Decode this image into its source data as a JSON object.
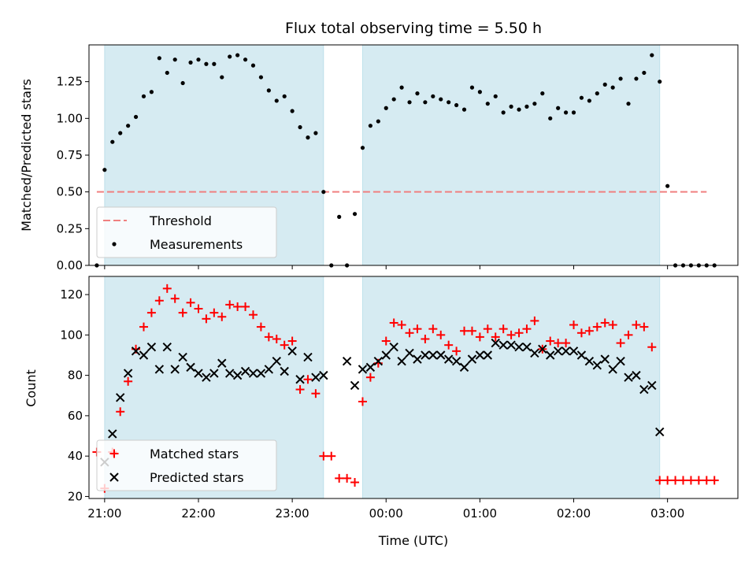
{
  "chart_data": [
    {
      "type": "scatter",
      "title": "Flux total observing time = 5.50 h",
      "xlabel": "",
      "ylabel": "Matched/Predicted stars",
      "xlim": [
        "20:50",
        "03:45"
      ],
      "ylim": [
        0,
        1.5
      ],
      "yticks": [
        "0.00",
        "0.25",
        "0.50",
        "0.75",
        "1.00",
        "1.25"
      ],
      "xticks": [
        "21:00",
        "22:00",
        "23:00",
        "00:00",
        "01:00",
        "02:00",
        "03:00"
      ],
      "observing_windows": [
        [
          "21:00",
          "23:20"
        ],
        [
          "23:45",
          "02:55"
        ]
      ],
      "threshold": {
        "name": "Threshold",
        "value": 0.5,
        "x_range": [
          "20:55",
          "03:25"
        ],
        "color": "#f08080"
      },
      "legend": {
        "placement": "lower-left"
      },
      "series": [
        {
          "name": "Measurements",
          "color": "#000000",
          "points": [
            [
              "20:55",
              0.0
            ],
            [
              "21:00",
              0.65
            ],
            [
              "21:05",
              0.84
            ],
            [
              "21:10",
              0.9
            ],
            [
              "21:15",
              0.95
            ],
            [
              "21:20",
              1.01
            ],
            [
              "21:25",
              1.15
            ],
            [
              "21:30",
              1.18
            ],
            [
              "21:35",
              1.41
            ],
            [
              "21:40",
              1.31
            ],
            [
              "21:45",
              1.4
            ],
            [
              "21:50",
              1.24
            ],
            [
              "21:55",
              1.38
            ],
            [
              "22:00",
              1.4
            ],
            [
              "22:05",
              1.37
            ],
            [
              "22:10",
              1.37
            ],
            [
              "22:15",
              1.28
            ],
            [
              "22:20",
              1.42
            ],
            [
              "22:25",
              1.43
            ],
            [
              "22:30",
              1.4
            ],
            [
              "22:35",
              1.36
            ],
            [
              "22:40",
              1.28
            ],
            [
              "22:45",
              1.19
            ],
            [
              "22:50",
              1.12
            ],
            [
              "22:55",
              1.15
            ],
            [
              "23:00",
              1.05
            ],
            [
              "23:05",
              0.94
            ],
            [
              "23:10",
              0.87
            ],
            [
              "23:15",
              0.9
            ],
            [
              "23:20",
              0.5
            ],
            [
              "23:25",
              0.0
            ],
            [
              "23:30",
              0.33
            ],
            [
              "23:35",
              0.0
            ],
            [
              "23:40",
              0.35
            ],
            [
              "23:45",
              0.8
            ],
            [
              "23:50",
              0.95
            ],
            [
              "23:55",
              0.98
            ],
            [
              "00:00",
              1.07
            ],
            [
              "00:05",
              1.13
            ],
            [
              "00:10",
              1.21
            ],
            [
              "00:15",
              1.11
            ],
            [
              "00:20",
              1.17
            ],
            [
              "00:25",
              1.11
            ],
            [
              "00:30",
              1.15
            ],
            [
              "00:35",
              1.13
            ],
            [
              "00:40",
              1.11
            ],
            [
              "00:45",
              1.09
            ],
            [
              "00:50",
              1.06
            ],
            [
              "00:55",
              1.21
            ],
            [
              "01:00",
              1.18
            ],
            [
              "01:05",
              1.1
            ],
            [
              "01:10",
              1.15
            ],
            [
              "01:15",
              1.04
            ],
            [
              "01:20",
              1.08
            ],
            [
              "01:25",
              1.06
            ],
            [
              "01:30",
              1.08
            ],
            [
              "01:35",
              1.1
            ],
            [
              "01:40",
              1.17
            ],
            [
              "01:45",
              1.0
            ],
            [
              "01:50",
              1.07
            ],
            [
              "01:55",
              1.04
            ],
            [
              "02:00",
              1.04
            ],
            [
              "02:05",
              1.14
            ],
            [
              "02:10",
              1.12
            ],
            [
              "02:15",
              1.17
            ],
            [
              "02:20",
              1.23
            ],
            [
              "02:25",
              1.21
            ],
            [
              "02:30",
              1.27
            ],
            [
              "02:35",
              1.1
            ],
            [
              "02:40",
              1.27
            ],
            [
              "02:45",
              1.31
            ],
            [
              "02:50",
              1.43
            ],
            [
              "02:55",
              1.25
            ],
            [
              "03:00",
              0.54
            ],
            [
              "03:05",
              0.0
            ],
            [
              "03:10",
              0.0
            ],
            [
              "03:15",
              0.0
            ],
            [
              "03:20",
              0.0
            ],
            [
              "03:25",
              0.0
            ],
            [
              "03:30",
              0.0
            ]
          ]
        }
      ]
    },
    {
      "type": "scatter",
      "title": "",
      "xlabel": "Time (UTC)",
      "ylabel": "Count",
      "xlim": [
        "20:50",
        "03:45"
      ],
      "ylim": [
        19,
        129
      ],
      "yticks": [
        "20",
        "40",
        "60",
        "80",
        "100",
        "120"
      ],
      "xticks": [
        "21:00",
        "22:00",
        "23:00",
        "00:00",
        "01:00",
        "02:00",
        "03:00"
      ],
      "observing_windows": [
        [
          "21:00",
          "23:20"
        ],
        [
          "23:45",
          "02:55"
        ]
      ],
      "legend": {
        "placement": "lower-left"
      },
      "series": [
        {
          "name": "Matched stars",
          "marker": "plus",
          "color": "#ff0000",
          "points": [
            [
              "20:55",
              42
            ],
            [
              "21:00",
              24
            ],
            [
              "21:05",
              42
            ],
            [
              "21:10",
              62
            ],
            [
              "21:15",
              77
            ],
            [
              "21:20",
              93
            ],
            [
              "21:25",
              104
            ],
            [
              "21:30",
              111
            ],
            [
              "21:35",
              117
            ],
            [
              "21:40",
              123
            ],
            [
              "21:45",
              118
            ],
            [
              "21:50",
              111
            ],
            [
              "21:55",
              116
            ],
            [
              "22:00",
              113
            ],
            [
              "22:05",
              108
            ],
            [
              "22:10",
              111
            ],
            [
              "22:15",
              109
            ],
            [
              "22:20",
              115
            ],
            [
              "22:25",
              114
            ],
            [
              "22:30",
              114
            ],
            [
              "22:35",
              110
            ],
            [
              "22:40",
              104
            ],
            [
              "22:45",
              99
            ],
            [
              "22:50",
              98
            ],
            [
              "22:55",
              95
            ],
            [
              "23:00",
              97
            ],
            [
              "23:05",
              73
            ],
            [
              "23:10",
              78
            ],
            [
              "23:15",
              71
            ],
            [
              "23:20",
              40
            ],
            [
              "23:25",
              40
            ],
            [
              "23:30",
              29
            ],
            [
              "23:35",
              29
            ],
            [
              "23:40",
              27
            ],
            [
              "23:45",
              67
            ],
            [
              "23:50",
              79
            ],
            [
              "23:55",
              86
            ],
            [
              "00:00",
              97
            ],
            [
              "00:05",
              106
            ],
            [
              "00:10",
              105
            ],
            [
              "00:15",
              101
            ],
            [
              "00:20",
              103
            ],
            [
              "00:25",
              98
            ],
            [
              "00:30",
              103
            ],
            [
              "00:35",
              100
            ],
            [
              "00:40",
              95
            ],
            [
              "00:45",
              92
            ],
            [
              "00:50",
              102
            ],
            [
              "00:55",
              102
            ],
            [
              "01:00",
              99
            ],
            [
              "01:05",
              103
            ],
            [
              "01:10",
              99
            ],
            [
              "01:15",
              103
            ],
            [
              "01:20",
              100
            ],
            [
              "01:25",
              101
            ],
            [
              "01:30",
              103
            ],
            [
              "01:35",
              107
            ],
            [
              "01:40",
              93
            ],
            [
              "01:45",
              97
            ],
            [
              "01:50",
              96
            ],
            [
              "01:55",
              96
            ],
            [
              "02:00",
              105
            ],
            [
              "02:05",
              101
            ],
            [
              "02:10",
              102
            ],
            [
              "02:15",
              104
            ],
            [
              "02:20",
              106
            ],
            [
              "02:25",
              105
            ],
            [
              "02:30",
              96
            ],
            [
              "02:35",
              100
            ],
            [
              "02:40",
              105
            ],
            [
              "02:45",
              104
            ],
            [
              "02:50",
              94
            ],
            [
              "02:55",
              28
            ],
            [
              "03:00",
              28
            ],
            [
              "03:05",
              28
            ],
            [
              "03:10",
              28
            ],
            [
              "03:15",
              28
            ],
            [
              "03:20",
              28
            ],
            [
              "03:25",
              28
            ],
            [
              "03:30",
              28
            ]
          ]
        },
        {
          "name": "Predicted stars",
          "marker": "x",
          "color": "#000000",
          "points": [
            [
              "21:00",
              37
            ],
            [
              "21:05",
              51
            ],
            [
              "21:10",
              69
            ],
            [
              "21:15",
              81
            ],
            [
              "21:20",
              92
            ],
            [
              "21:25",
              90
            ],
            [
              "21:30",
              94
            ],
            [
              "21:35",
              83
            ],
            [
              "21:40",
              94
            ],
            [
              "21:45",
              83
            ],
            [
              "21:50",
              89
            ],
            [
              "21:55",
              84
            ],
            [
              "22:00",
              81
            ],
            [
              "22:05",
              79
            ],
            [
              "22:10",
              81
            ],
            [
              "22:15",
              86
            ],
            [
              "22:20",
              81
            ],
            [
              "22:25",
              80
            ],
            [
              "22:30",
              82
            ],
            [
              "22:35",
              81
            ],
            [
              "22:40",
              81
            ],
            [
              "22:45",
              83
            ],
            [
              "22:50",
              87
            ],
            [
              "22:55",
              82
            ],
            [
              "23:00",
              92
            ],
            [
              "23:05",
              78
            ],
            [
              "23:10",
              89
            ],
            [
              "23:15",
              79
            ],
            [
              "23:20",
              80
            ],
            [
              "23:35",
              87
            ],
            [
              "23:40",
              75
            ],
            [
              "23:45",
              83
            ],
            [
              "23:50",
              84
            ],
            [
              "23:55",
              87
            ],
            [
              "00:00",
              90
            ],
            [
              "00:05",
              94
            ],
            [
              "00:10",
              87
            ],
            [
              "00:15",
              91
            ],
            [
              "00:20",
              88
            ],
            [
              "00:25",
              90
            ],
            [
              "00:30",
              90
            ],
            [
              "00:35",
              90
            ],
            [
              "00:40",
              88
            ],
            [
              "00:45",
              87
            ],
            [
              "00:50",
              84
            ],
            [
              "00:55",
              88
            ],
            [
              "01:00",
              90
            ],
            [
              "01:05",
              90
            ],
            [
              "01:10",
              96
            ],
            [
              "01:15",
              95
            ],
            [
              "01:20",
              95
            ],
            [
              "01:25",
              94
            ],
            [
              "01:30",
              94
            ],
            [
              "01:35",
              91
            ],
            [
              "01:40",
              93
            ],
            [
              "01:45",
              90
            ],
            [
              "01:50",
              92
            ],
            [
              "01:55",
              92
            ],
            [
              "02:00",
              92
            ],
            [
              "02:05",
              90
            ],
            [
              "02:10",
              87
            ],
            [
              "02:15",
              85
            ],
            [
              "02:20",
              88
            ],
            [
              "02:25",
              83
            ],
            [
              "02:30",
              87
            ],
            [
              "02:35",
              79
            ],
            [
              "02:40",
              80
            ],
            [
              "02:45",
              73
            ],
            [
              "02:50",
              75
            ],
            [
              "02:55",
              52
            ]
          ]
        }
      ]
    }
  ]
}
